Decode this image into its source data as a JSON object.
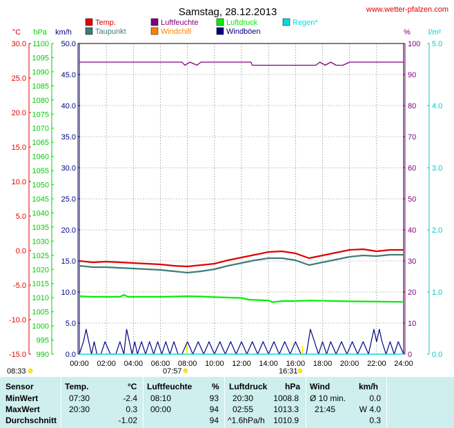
{
  "title": "Samstag, 28.12.2013",
  "site": "www.wetter-pfalzen.com",
  "colors": {
    "temp": "#e00000",
    "dew": "#3f7a7a",
    "humidity": "#800080",
    "windchill": "#ff8000",
    "pressure": "#00ee00",
    "gust": "#000080",
    "rain": "#00dddd"
  },
  "chart_data": {
    "type": "line",
    "title": "Samstag, 28.12.2013",
    "x_ticks": [
      "00:00",
      "02:00",
      "04:00",
      "06:00",
      "08:00",
      "10:00",
      "12:00",
      "14:00",
      "16:00",
      "18:00",
      "20:00",
      "22:00",
      "24:00"
    ],
    "axes": {
      "temp": {
        "unit": "°C",
        "range": [
          -15,
          30
        ],
        "ticks": [
          "30.0",
          "25.0",
          "20.0",
          "15.0",
          "10.0",
          "5.0",
          "0.0",
          "-5.0",
          "-10.0",
          "-15.0"
        ]
      },
      "pressure": {
        "unit": "hPa",
        "range": [
          990,
          1100
        ],
        "ticks": [
          "1100",
          "1095",
          "1090",
          "1085",
          "1080",
          "1075",
          "1070",
          "1065",
          "1060",
          "1055",
          "1050",
          "1045",
          "1040",
          "1035",
          "1030",
          "1025",
          "1020",
          "1015",
          "1010",
          "1005",
          "1000",
          "995",
          "990"
        ]
      },
      "wind": {
        "unit": "km/h",
        "range": [
          0,
          50
        ],
        "ticks": [
          "50.0",
          "45.0",
          "40.0",
          "35.0",
          "30.0",
          "25.0",
          "20.0",
          "15.0",
          "10.0",
          "5.0",
          "0.0"
        ]
      },
      "humidity": {
        "unit": "%",
        "range": [
          0,
          100
        ],
        "ticks": [
          "100",
          "90",
          "80",
          "70",
          "60",
          "50",
          "40",
          "30",
          "20",
          "10",
          "0"
        ]
      },
      "rain": {
        "unit": "l/m²",
        "range": [
          0,
          5
        ],
        "ticks": [
          "5.0",
          "4.0",
          "3.0",
          "2.0",
          "1.0",
          "0.0"
        ]
      }
    },
    "legend": [
      {
        "key": "temp",
        "label": "Temp."
      },
      {
        "key": "humidity",
        "label": "Luftfeuchte"
      },
      {
        "key": "pressure",
        "label": "Luftdruck"
      },
      {
        "key": "rain",
        "label": "Regen*"
      },
      {
        "key": "dew",
        "label": "Taupunkt"
      },
      {
        "key": "windchill",
        "label": "Windchill"
      },
      {
        "key": "gust",
        "label": "Windböen"
      }
    ],
    "series": [
      {
        "name": "Temp.",
        "axis": "temp",
        "x": [
          0,
          1,
          2,
          3,
          4,
          5,
          6,
          7,
          8,
          9,
          10,
          11,
          12,
          13,
          14,
          15,
          16,
          17,
          18,
          19,
          20,
          21,
          22,
          23,
          24
        ],
        "y": [
          -1.5,
          -1.7,
          -1.6,
          -1.7,
          -1.8,
          -1.9,
          -2.0,
          -2.2,
          -2.3,
          -2.1,
          -1.9,
          -1.4,
          -1.0,
          -0.6,
          -0.2,
          -0.1,
          -0.4,
          -1.1,
          -0.7,
          -0.3,
          0.1,
          0.2,
          -0.1,
          0.1,
          0.1
        ]
      },
      {
        "name": "Taupunkt",
        "axis": "temp",
        "x": [
          0,
          1,
          2,
          3,
          4,
          5,
          6,
          7,
          8,
          9,
          10,
          11,
          12,
          13,
          14,
          15,
          16,
          17,
          18,
          19,
          20,
          21,
          22,
          23,
          24
        ],
        "y": [
          -2.2,
          -2.4,
          -2.4,
          -2.5,
          -2.6,
          -2.7,
          -2.8,
          -3.0,
          -3.2,
          -3.0,
          -2.7,
          -2.2,
          -1.8,
          -1.4,
          -1.1,
          -1.1,
          -1.4,
          -2.1,
          -1.7,
          -1.3,
          -0.9,
          -0.7,
          -0.8,
          -0.6,
          -0.6
        ]
      },
      {
        "name": "Luftfeuchte",
        "axis": "humidity",
        "x": [
          0,
          2,
          4,
          6,
          7.6,
          7.8,
          8.2,
          8.7,
          9,
          10,
          12,
          12.7,
          12.8,
          13.2,
          14,
          16,
          17.5,
          17.8,
          18.2,
          18.6,
          19,
          19.5,
          20,
          22,
          24
        ],
        "y": [
          94,
          94,
          94,
          94,
          94,
          93,
          94,
          93,
          94,
          94,
          94,
          94,
          93,
          93,
          93,
          93,
          93,
          94,
          93,
          94,
          93,
          93,
          94,
          94,
          94
        ]
      },
      {
        "name": "Luftdruck",
        "axis": "pressure",
        "x": [
          0,
          1,
          2,
          3,
          3.3,
          3.6,
          4,
          6,
          8,
          9,
          10,
          12,
          12.5,
          13,
          14,
          14.3,
          15,
          16,
          17,
          18,
          20,
          22,
          24
        ],
        "y": [
          1010.5,
          1010.3,
          1010.3,
          1010.3,
          1011.0,
          1010.3,
          1010.3,
          1010.3,
          1010.5,
          1010.4,
          1010.2,
          1009.9,
          1009.3,
          1009.2,
          1009.0,
          1008.4,
          1008.8,
          1008.8,
          1009.0,
          1008.9,
          1008.7,
          1008.6,
          1008.5
        ]
      },
      {
        "name": "Windböen",
        "axis": "wind",
        "x": [
          0,
          0.3,
          0.5,
          0.7,
          0.9,
          1.1,
          1.3,
          1.6,
          1.9,
          2.3,
          2.7,
          3.0,
          3.3,
          3.5,
          3.7,
          3.9,
          4.1,
          4.3,
          4.6,
          4.9,
          5.2,
          5.5,
          5.8,
          6.1,
          6.4,
          6.7,
          7.0,
          7.3,
          7.6,
          8.0,
          8.4,
          8.8,
          9.2,
          9.6,
          10.0,
          10.4,
          10.8,
          11.2,
          11.6,
          12.0,
          12.4,
          12.8,
          13.2,
          13.6,
          14.0,
          14.4,
          14.8,
          15.2,
          15.6,
          16.0,
          16.4,
          16.8,
          17.1,
          17.4,
          17.7,
          18.0,
          18.3,
          18.6,
          19.0,
          19.4,
          19.8,
          20.2,
          20.6,
          21.0,
          21.4,
          21.6,
          21.8,
          22.0,
          22.2,
          22.4,
          22.7,
          23.0,
          23.3,
          23.6,
          24.0
        ],
        "y": [
          0,
          2,
          4,
          2,
          0,
          2,
          0,
          0,
          2,
          0,
          0,
          2,
          0,
          4,
          2,
          0,
          2,
          0,
          2,
          0,
          2,
          0,
          2,
          0,
          2,
          0,
          2,
          0,
          0,
          2,
          0,
          2,
          0,
          2,
          0,
          2,
          0,
          2,
          0,
          2,
          0,
          2,
          0,
          2,
          0,
          2,
          0,
          2,
          0,
          2,
          0,
          0,
          4,
          2,
          0,
          2,
          0,
          2,
          0,
          2,
          0,
          2,
          0,
          2,
          0,
          2,
          4,
          2,
          4,
          2,
          0,
          2,
          0,
          2,
          0
        ]
      },
      {
        "name": "Regen*",
        "axis": "rain",
        "x": [
          0,
          24
        ],
        "y": [
          0,
          0
        ]
      }
    ],
    "sun_markers": [
      {
        "label": "08:33",
        "kind": "sunrise-ref"
      },
      {
        "label": "07:57",
        "kind": "sunrise"
      },
      {
        "label": "16:31",
        "kind": "sunset"
      }
    ]
  },
  "table": {
    "headers": {
      "sensor": "Sensor",
      "temp": "Temp.",
      "temp_unit": "°C",
      "hum": "Luftfeuchte",
      "hum_unit": "%",
      "press": "Luftdruck",
      "press_unit": "hPa",
      "wind": "Wind",
      "wind_unit": "km/h"
    },
    "rows": [
      {
        "label": "MinWert",
        "temp_time": "07:30",
        "temp_val": "-2.4",
        "hum_time": "08:10",
        "hum_val": "93",
        "press_time": "20:30",
        "press_val": "1008.8",
        "wind_label": "Ø 10 min.",
        "wind_val": "0.0"
      },
      {
        "label": "MaxWert",
        "temp_time": "20:30",
        "temp_val": "0.3",
        "hum_time": "00:00",
        "hum_val": "94",
        "press_time": "02:55",
        "press_val": "1013.3",
        "wind_label": "21:45",
        "wind_val": "W 4.0"
      },
      {
        "label": "Durchschnitt",
        "temp_time": "",
        "temp_val": "-1.02",
        "hum_time": "",
        "hum_val": "94",
        "press_time": "^1.6hPa/h",
        "press_val": "1010.9",
        "wind_label": "",
        "wind_val": "0.3"
      }
    ]
  }
}
